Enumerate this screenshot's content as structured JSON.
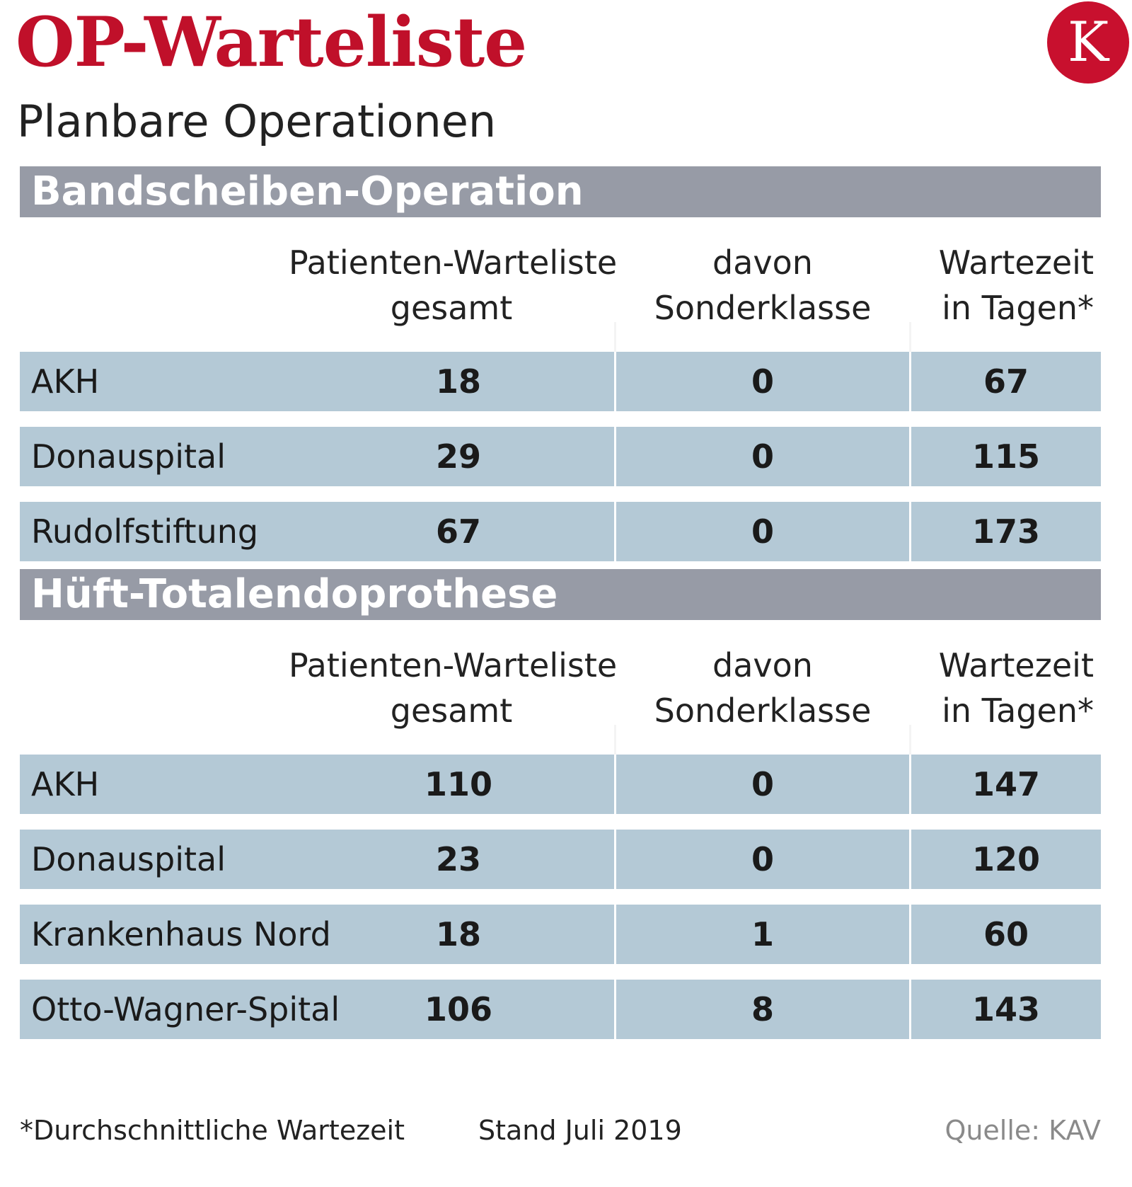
{
  "header": {
    "title": "OP-Warteliste",
    "subtitle": "Planbare Operationen",
    "logo_letter": "K"
  },
  "columns": {
    "col1_line1": "Patienten-Warteliste",
    "col1_line2": "gesamt",
    "col2_line1": "davon",
    "col2_line2": "Sonderklasse",
    "col3_line1": "Wartezeit",
    "col3_line2": "in Tagen*"
  },
  "chart_data": {
    "type": "table",
    "title": "OP-Warteliste",
    "subtitle": "Planbare Operationen",
    "columns": [
      "",
      "Patienten-Warteliste gesamt",
      "davon Sonderklasse",
      "Wartezeit in Tagen*"
    ],
    "sections": [
      {
        "name": "Bandscheiben-Operation",
        "rows": [
          {
            "hospital": "AKH",
            "total": "18",
            "special": "0",
            "days": "67"
          },
          {
            "hospital": "Donauspital",
            "total": "29",
            "special": "0",
            "days": "115"
          },
          {
            "hospital": "Rudolfstiftung",
            "total": "67",
            "special": "0",
            "days": "173"
          }
        ]
      },
      {
        "name": "Hüft-Totalendoprothese",
        "rows": [
          {
            "hospital": "AKH",
            "total": "110",
            "special": "0",
            "days": "147"
          },
          {
            "hospital": "Donauspital",
            "total": "23",
            "special": "0",
            "days": "120"
          },
          {
            "hospital": "Krankenhaus Nord",
            "total": "18",
            "special": "1",
            "days": "60"
          },
          {
            "hospital": "Otto-Wagner-Spital",
            "total": "106",
            "special": "8",
            "days": "143"
          }
        ]
      }
    ]
  },
  "footer": {
    "note": "*Durchschnittliche Wartezeit",
    "date": "Stand Juli 2019",
    "source": "Quelle: KAV"
  },
  "colors": {
    "title": "#c0102a",
    "logo": "#c8102e",
    "section_header": "#979ba6",
    "row": "#b4c9d6"
  }
}
